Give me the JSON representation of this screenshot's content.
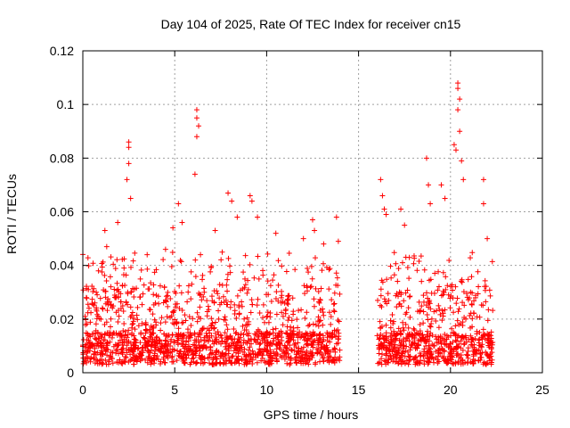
{
  "chart_data": {
    "type": "scatter",
    "title": "Day 104 of 2025, Rate Of TEC Index for receiver cn15",
    "xlabel": "GPS time / hours",
    "ylabel": "ROTI / TECUs",
    "xlim": [
      0,
      25
    ],
    "ylim": [
      0,
      0.12
    ],
    "xticks": [
      0,
      5,
      10,
      15,
      20,
      25
    ],
    "yticks": [
      0,
      0.02,
      0.04,
      0.06,
      0.08,
      0.1,
      0.12
    ],
    "xtick_labels": [
      "0",
      "5",
      "10",
      "15",
      "20",
      "25"
    ],
    "ytick_labels": [
      "0",
      "0.02",
      "0.04",
      "0.06",
      "0.08",
      "0.1",
      "0.12"
    ],
    "grid": true,
    "marker": "+",
    "color": "#ff0000",
    "series": [
      {
        "name": "ROTI",
        "segments": [
          {
            "x_range": [
              0.0,
              14.0
            ],
            "typical_max": 0.03
          },
          {
            "x_range": [
              16.0,
              22.3
            ],
            "typical_max": 0.03
          }
        ],
        "notable_points": [
          {
            "x": 0.3,
            "y": 0.031
          },
          {
            "x": 1.2,
            "y": 0.053
          },
          {
            "x": 1.3,
            "y": 0.047
          },
          {
            "x": 1.9,
            "y": 0.056
          },
          {
            "x": 2.4,
            "y": 0.072
          },
          {
            "x": 2.5,
            "y": 0.086
          },
          {
            "x": 2.5,
            "y": 0.084
          },
          {
            "x": 2.5,
            "y": 0.078
          },
          {
            "x": 2.6,
            "y": 0.065
          },
          {
            "x": 3.5,
            "y": 0.044
          },
          {
            "x": 4.5,
            "y": 0.046
          },
          {
            "x": 4.9,
            "y": 0.054
          },
          {
            "x": 5.2,
            "y": 0.063
          },
          {
            "x": 5.4,
            "y": 0.056
          },
          {
            "x": 6.1,
            "y": 0.074
          },
          {
            "x": 6.2,
            "y": 0.098
          },
          {
            "x": 6.2,
            "y": 0.095
          },
          {
            "x": 6.3,
            "y": 0.092
          },
          {
            "x": 6.2,
            "y": 0.088
          },
          {
            "x": 6.4,
            "y": 0.044
          },
          {
            "x": 7.2,
            "y": 0.053
          },
          {
            "x": 7.9,
            "y": 0.067
          },
          {
            "x": 8.1,
            "y": 0.064
          },
          {
            "x": 8.4,
            "y": 0.058
          },
          {
            "x": 9.1,
            "y": 0.066
          },
          {
            "x": 9.2,
            "y": 0.064
          },
          {
            "x": 9.5,
            "y": 0.058
          },
          {
            "x": 10.5,
            "y": 0.052
          },
          {
            "x": 12.0,
            "y": 0.05
          },
          {
            "x": 12.5,
            "y": 0.057
          },
          {
            "x": 12.6,
            "y": 0.053
          },
          {
            "x": 13.1,
            "y": 0.048
          },
          {
            "x": 13.8,
            "y": 0.058
          },
          {
            "x": 13.9,
            "y": 0.049
          },
          {
            "x": 16.2,
            "y": 0.072
          },
          {
            "x": 16.3,
            "y": 0.066
          },
          {
            "x": 16.4,
            "y": 0.061
          },
          {
            "x": 16.5,
            "y": 0.059
          },
          {
            "x": 17.3,
            "y": 0.061
          },
          {
            "x": 17.5,
            "y": 0.055
          },
          {
            "x": 18.7,
            "y": 0.08
          },
          {
            "x": 18.8,
            "y": 0.07
          },
          {
            "x": 18.9,
            "y": 0.063
          },
          {
            "x": 19.5,
            "y": 0.07
          },
          {
            "x": 19.7,
            "y": 0.065
          },
          {
            "x": 20.2,
            "y": 0.085
          },
          {
            "x": 20.3,
            "y": 0.083
          },
          {
            "x": 20.4,
            "y": 0.108
          },
          {
            "x": 20.4,
            "y": 0.106
          },
          {
            "x": 20.5,
            "y": 0.102
          },
          {
            "x": 20.4,
            "y": 0.098
          },
          {
            "x": 20.5,
            "y": 0.09
          },
          {
            "x": 20.6,
            "y": 0.079
          },
          {
            "x": 20.7,
            "y": 0.072
          },
          {
            "x": 21.8,
            "y": 0.072
          },
          {
            "x": 21.8,
            "y": 0.063
          },
          {
            "x": 22.0,
            "y": 0.05
          }
        ]
      }
    ]
  }
}
